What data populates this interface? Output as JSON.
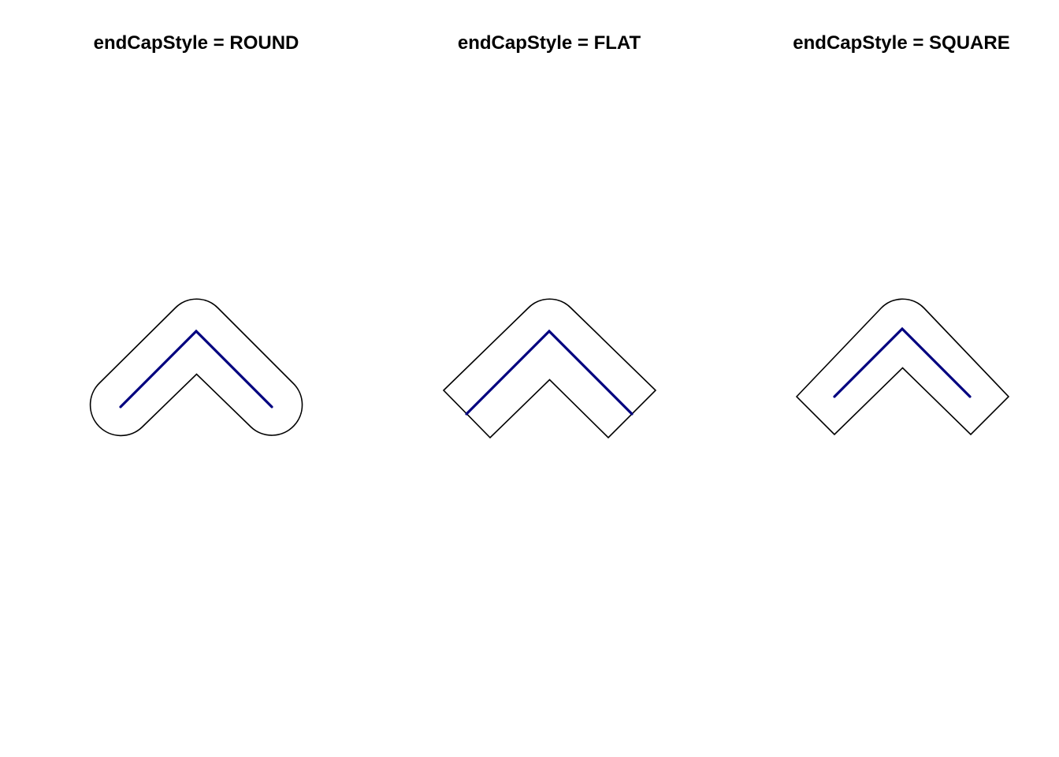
{
  "figure": {
    "background_color": "#ffffff",
    "outline_color": "#000000",
    "line_color": "#00007f"
  },
  "panels": [
    {
      "title": "endCapStyle = ROUND"
    },
    {
      "title": "endCapStyle = FLAT"
    },
    {
      "title": "endCapStyle = SQUARE"
    }
  ]
}
